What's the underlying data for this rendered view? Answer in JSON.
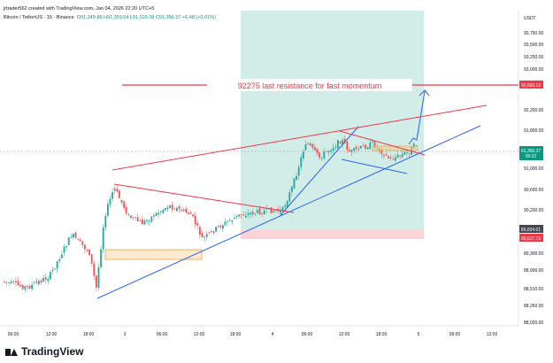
{
  "header": {
    "created_by": "jrtrader562 created with TradingView.com, Jan 04, 2026 22:20 UTC+5",
    "symbol_line": "Bitcoin / TetherUS · 15 · Binance",
    "ohlc": "O91,349.88  H91,359.54  L91,320.38  C91,356.37  +6.48 (+0.01%)"
  },
  "price_axis": {
    "currency": "USDT",
    "ticks": [
      "93,750.00",
      "93,500.00",
      "93,250.00",
      "93,000.00",
      "92,600.00",
      "92,200.00",
      "91,800.00",
      "91,356.37",
      "91,000.00",
      "90,600.00",
      "90,200.00",
      "89,834.01",
      "89,627.73",
      "89,300.00",
      "88,900.00",
      "88,510.00",
      "88,260.00",
      "88,020.00"
    ],
    "current_price": "91,356.37",
    "current_time": "09:22",
    "label_resistance": "92,669.13",
    "label_stop_upper": "89,834.01",
    "label_stop_lower": "89,627.73"
  },
  "time_axis": {
    "ticks": [
      "06:00",
      "12:00",
      "18:00",
      "3",
      "06:00",
      "12:00",
      "18:00",
      "4",
      "06:00",
      "12:00",
      "18:00",
      "5",
      "06:00",
      "12:00"
    ]
  },
  "annotation": {
    "text": "92275 last resistance for fast momentum"
  },
  "colors": {
    "up": "#26a69a",
    "down": "#ef5350",
    "trend_blue": "#2962ff",
    "resistance_red": "#f23645",
    "zone_green": "rgba(8,153,129,0.18)",
    "zone_red": "rgba(242,54,69,0.2)",
    "box_orange": "#f7c77a"
  },
  "footer": {
    "brand": "TradingView"
  }
}
